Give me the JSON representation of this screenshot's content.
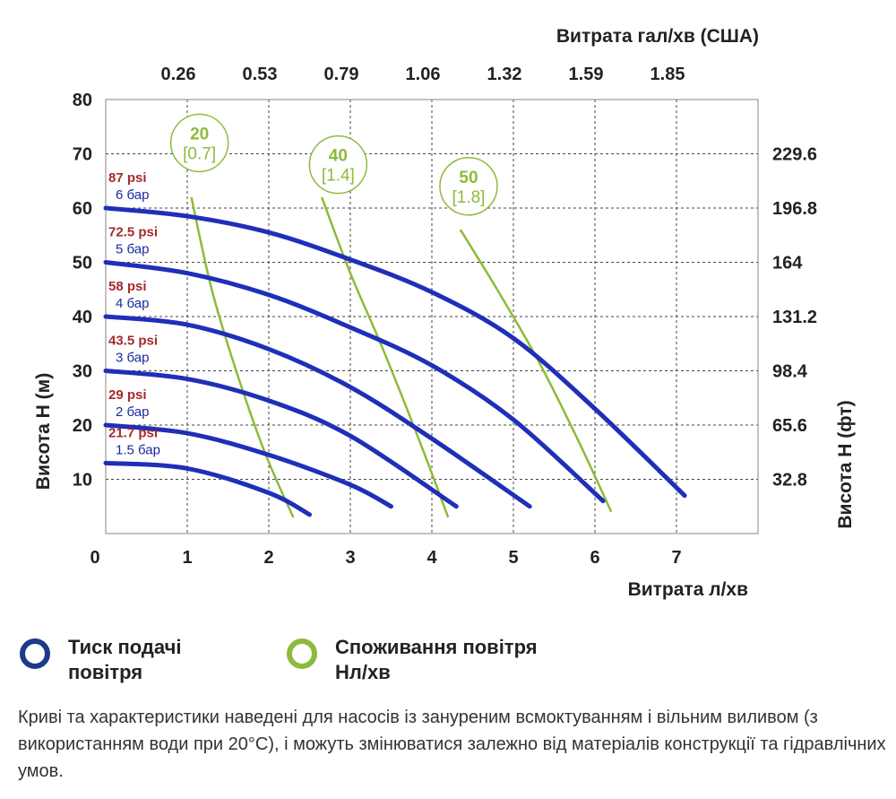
{
  "chart_data": {
    "type": "line",
    "title": "",
    "xlabel": "Витрата л/хв",
    "ylabel": "Висота H (м)",
    "ylabel_right": "Висота H (фт)",
    "xlabel_top": "Витрата гал/хв (США)",
    "xlim": [
      0,
      8
    ],
    "ylim": [
      0,
      80
    ],
    "grid": true,
    "x_ticks": [
      "0",
      "1",
      "2",
      "3",
      "4",
      "5",
      "6",
      "7"
    ],
    "y_ticks": [
      "10",
      "20",
      "30",
      "40",
      "50",
      "60",
      "70",
      "80"
    ],
    "top_ticks": [
      "0.26",
      "0.53",
      "0.79",
      "1.06",
      "1.32",
      "1.59",
      "1.85"
    ],
    "right_ticks": [
      "32.8",
      "65.6",
      "98.4",
      "131.2",
      "164",
      "196.8",
      "229.6"
    ],
    "pressure_series": [
      {
        "name": "6 бар",
        "psi_label": "87 psi",
        "bar_label": "6 бар",
        "points": [
          [
            0,
            60
          ],
          [
            1,
            58.5
          ],
          [
            2,
            55.5
          ],
          [
            3,
            50.5
          ],
          [
            4,
            44.5
          ],
          [
            5,
            36
          ],
          [
            6,
            23
          ],
          [
            7.1,
            7
          ]
        ]
      },
      {
        "name": "5 бар",
        "psi_label": "72.5 psi",
        "bar_label": "5 бар",
        "points": [
          [
            0,
            50
          ],
          [
            1,
            48
          ],
          [
            2,
            44
          ],
          [
            3,
            38
          ],
          [
            4,
            31
          ],
          [
            5,
            21
          ],
          [
            6.1,
            6
          ]
        ]
      },
      {
        "name": "4 бар",
        "psi_label": "58 psi",
        "bar_label": "4 бар",
        "points": [
          [
            0,
            40
          ],
          [
            1,
            38.5
          ],
          [
            2,
            34
          ],
          [
            3,
            27
          ],
          [
            4,
            17.5
          ],
          [
            5.2,
            5
          ]
        ]
      },
      {
        "name": "3 бар",
        "psi_label": "43.5 psi",
        "bar_label": "3 бар",
        "points": [
          [
            0,
            30
          ],
          [
            1,
            28.5
          ],
          [
            2,
            24.5
          ],
          [
            3,
            18
          ],
          [
            4.3,
            5
          ]
        ]
      },
      {
        "name": "2 бар",
        "psi_label": "29 psi",
        "bar_label": "2 бар",
        "points": [
          [
            0,
            20
          ],
          [
            1,
            18.5
          ],
          [
            2,
            14.5
          ],
          [
            3,
            9
          ],
          [
            3.5,
            5
          ]
        ]
      },
      {
        "name": "1.5 бар",
        "psi_label": "21.7 psi",
        "bar_label": "1.5 бар",
        "points": [
          [
            0,
            13
          ],
          [
            1,
            12
          ],
          [
            2,
            7.5
          ],
          [
            2.5,
            3.5
          ]
        ]
      }
    ],
    "air_series": [
      {
        "name": "20",
        "value_label": "20",
        "sub_label": "[0.7]",
        "points": [
          [
            1.05,
            62
          ],
          [
            1.3,
            45
          ],
          [
            1.6,
            30
          ],
          [
            1.95,
            15
          ],
          [
            2.3,
            3
          ]
        ],
        "bubble": [
          1.15,
          72
        ]
      },
      {
        "name": "40",
        "value_label": "40",
        "sub_label": "[1.4]",
        "points": [
          [
            2.65,
            62
          ],
          [
            3,
            48
          ],
          [
            3.4,
            34
          ],
          [
            3.85,
            17
          ],
          [
            4.2,
            3
          ]
        ],
        "bubble": [
          2.85,
          68
        ]
      },
      {
        "name": "50",
        "value_label": "50",
        "sub_label": "[1.8]",
        "points": [
          [
            4.35,
            56
          ],
          [
            4.8,
            45
          ],
          [
            5.3,
            32
          ],
          [
            5.8,
            17
          ],
          [
            6.2,
            4
          ]
        ],
        "bubble": [
          4.45,
          64
        ]
      }
    ]
  },
  "legend": {
    "pressure_label": "Тиск подачі\nповітря",
    "air_label": "Споживання повітря\nНл/хв"
  },
  "colors": {
    "pressure": "#1f2fb8",
    "air": "#8dbb3a",
    "grid": "#333333",
    "psi_text": "#a52a2a",
    "bar_text": "#1a2a9c"
  },
  "note": "Криві та характеристики наведені для насосів із зануреним всмоктуванням і вільним виливом (з використанням води при 20°C), і можуть змінюватися залежно від матеріалів конструкції та гідравлічних умов."
}
